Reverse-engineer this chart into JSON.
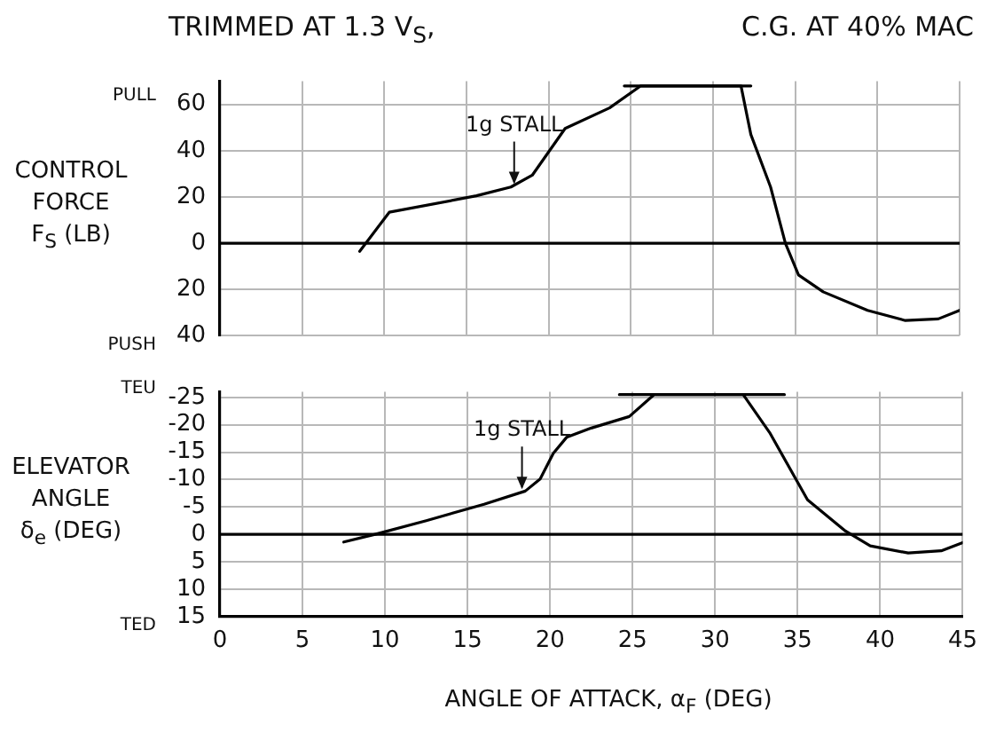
{
  "chart_data": [
    {
      "type": "line",
      "title": "TRIMMED AT 1.3 V$_{S}$,",
      "subtitle": "C.G. AT 40% MAC",
      "ylabel": "CONTROL FORCE F$_{S}$ (LB)",
      "annotations": [
        {
          "text": "1g STALL",
          "x": 17.9,
          "y": 24
        },
        "PULL",
        "PUSH"
      ],
      "xlim": [
        0,
        45
      ],
      "xticks": [
        0,
        5,
        10,
        15,
        20,
        25,
        30,
        35,
        40,
        45
      ],
      "ylim": [
        -40,
        70
      ],
      "yticks": [
        {
          "value": -40,
          "label": "40"
        },
        {
          "value": -20,
          "label": "20"
        },
        0,
        20,
        40,
        60
      ],
      "tick_labels": "y",
      "grid": true,
      "ref_lines": [
        {
          "axis": "y",
          "value": 0,
          "color": "#000000"
        }
      ],
      "series": [
        {
          "color": "#000000",
          "x": [
            8.5,
            10.3,
            15.6,
            17.7,
            19.0,
            21.0,
            23.7,
            25.6,
            31.7,
            32.3,
            33.5,
            34.4,
            35.2,
            36.7,
            39.4,
            41.7,
            43.7,
            45
          ],
          "values": [
            -3.5,
            13.4,
            20.5,
            24.3,
            29.4,
            49.6,
            58.5,
            68,
            68,
            47,
            24.3,
            0,
            -13.7,
            -21,
            -29,
            -33.4,
            -32.7,
            -29
          ]
        },
        {
          "color": "#000000",
          "x": [
            24.6,
            32.3
          ],
          "values": [
            68,
            68
          ]
        }
      ]
    },
    {
      "type": "line",
      "ylabel": "ELEVATOR ANGLE δ$_{e}$ (DEG)",
      "xlabel": "ANGLE OF ATTACK, α$_{F}$ (DEG)",
      "annotations": [
        {
          "text": "1g STALL",
          "x": 18.3,
          "y": -7.6
        },
        "TEU",
        "TED"
      ],
      "xlim": [
        0,
        45
      ],
      "xticks": [
        0,
        5,
        10,
        15,
        20,
        25,
        30,
        35,
        40,
        45
      ],
      "ylim": [
        15,
        -26
      ],
      "yticks": [
        -25,
        -20,
        -15,
        -10,
        -5,
        0,
        5,
        10,
        15
      ],
      "grid": true,
      "ref_lines": [
        {
          "axis": "y",
          "value": 0,
          "color": "#000000"
        }
      ],
      "series": [
        {
          "color": "#000000",
          "x": [
            7.5,
            9.4,
            12.5,
            16.0,
            18.5,
            19.4,
            20.2,
            21.0,
            22.5,
            24.8,
            26.3,
            31.7,
            33.3,
            35.6,
            37.9,
            39.4,
            41.7,
            43.7,
            45
          ],
          "values": [
            1.4,
            0,
            -2.5,
            -5.5,
            -7.9,
            -10.1,
            -14.8,
            -17.7,
            -19.4,
            -21.5,
            -25.5,
            -25.5,
            -18.6,
            -6.3,
            -0.6,
            2.1,
            3.4,
            3.0,
            1.5
          ]
        },
        {
          "color": "#000000",
          "x": [
            24.2,
            34.2
          ],
          "values": [
            -25.5,
            -25.5
          ]
        }
      ]
    }
  ]
}
